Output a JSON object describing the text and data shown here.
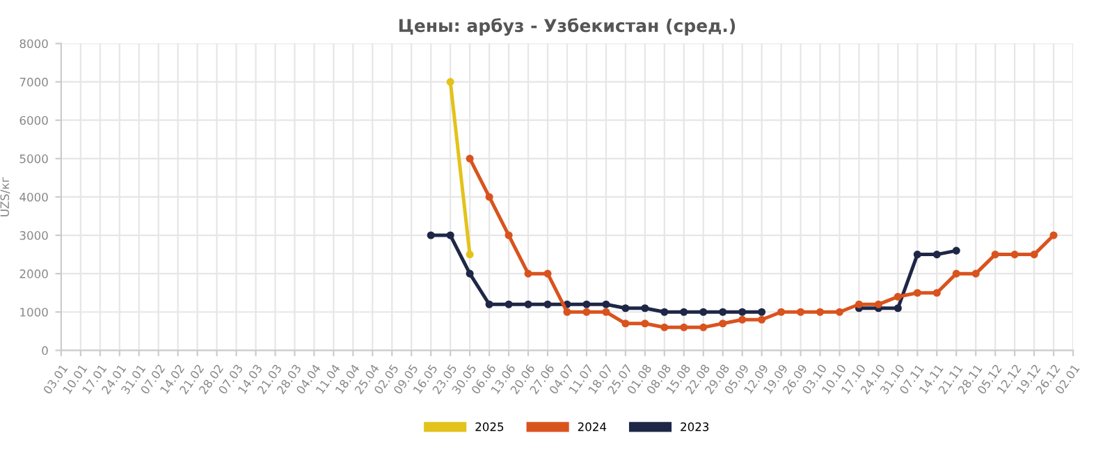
{
  "chart_data": {
    "type": "line",
    "title": "Цены: арбуз - Узбекистан (сред.)",
    "ylabel": "UZS/кг",
    "categories": [
      "03.01",
      "10.01",
      "17.01",
      "24.01",
      "31.01",
      "07.02",
      "14.02",
      "21.02",
      "28.02",
      "07.03",
      "14.03",
      "21.03",
      "28.03",
      "04.04",
      "11.04",
      "18.04",
      "25.04",
      "02.05",
      "09.05",
      "16.05",
      "23.05",
      "30.05",
      "06.06",
      "13.06",
      "20.06",
      "27.06",
      "04.07",
      "11.07",
      "18.07",
      "25.07",
      "01.08",
      "08.08",
      "15.08",
      "22.08",
      "29.08",
      "05.09",
      "12.09",
      "19.09",
      "26.09",
      "03.10",
      "10.10",
      "17.10",
      "24.10",
      "31.10",
      "07.11",
      "14.11",
      "21.11",
      "28.11",
      "05.12",
      "12.12",
      "19.12",
      "26.12",
      "02.01"
    ],
    "series": [
      {
        "name": "2025",
        "color": "#e3c31b",
        "values": [
          null,
          null,
          null,
          null,
          null,
          null,
          null,
          null,
          null,
          null,
          null,
          null,
          null,
          null,
          null,
          null,
          null,
          null,
          null,
          null,
          7000,
          2500,
          null,
          null,
          null,
          null,
          null,
          null,
          null,
          null,
          null,
          null,
          null,
          null,
          null,
          null,
          null,
          null,
          null,
          null,
          null,
          null,
          null,
          null,
          null,
          null,
          null,
          null,
          null,
          null,
          null,
          null,
          null
        ]
      },
      {
        "name": "2024",
        "color": "#d9531e",
        "values": [
          null,
          null,
          null,
          null,
          null,
          null,
          null,
          null,
          null,
          null,
          null,
          null,
          null,
          null,
          null,
          null,
          null,
          null,
          null,
          null,
          null,
          5000,
          4000,
          3000,
          2000,
          2000,
          1000,
          1000,
          1000,
          700,
          700,
          600,
          600,
          600,
          700,
          800,
          800,
          1000,
          1000,
          1000,
          1000,
          1200,
          1200,
          1400,
          1500,
          1500,
          2000,
          2000,
          2500,
          2500,
          2500,
          3000,
          null
        ]
      },
      {
        "name": "2023",
        "color": "#1f2747",
        "values": [
          null,
          null,
          null,
          null,
          null,
          null,
          null,
          null,
          null,
          null,
          null,
          null,
          null,
          null,
          null,
          null,
          null,
          null,
          null,
          3000,
          3000,
          2000,
          1200,
          1200,
          1200,
          1200,
          1200,
          1200,
          1200,
          1100,
          1100,
          1000,
          1000,
          1000,
          1000,
          1000,
          1000,
          null,
          null,
          null,
          null,
          1100,
          1100,
          1100,
          2500,
          2500,
          2600,
          null,
          null,
          null,
          null,
          null,
          null
        ]
      }
    ],
    "ylim": [
      0,
      8000
    ],
    "yticks": [
      0,
      1000,
      2000,
      3000,
      4000,
      5000,
      6000,
      7000,
      8000
    ],
    "grid": true,
    "legend": "bottom",
    "marker": "circle",
    "line_style": "solid"
  }
}
